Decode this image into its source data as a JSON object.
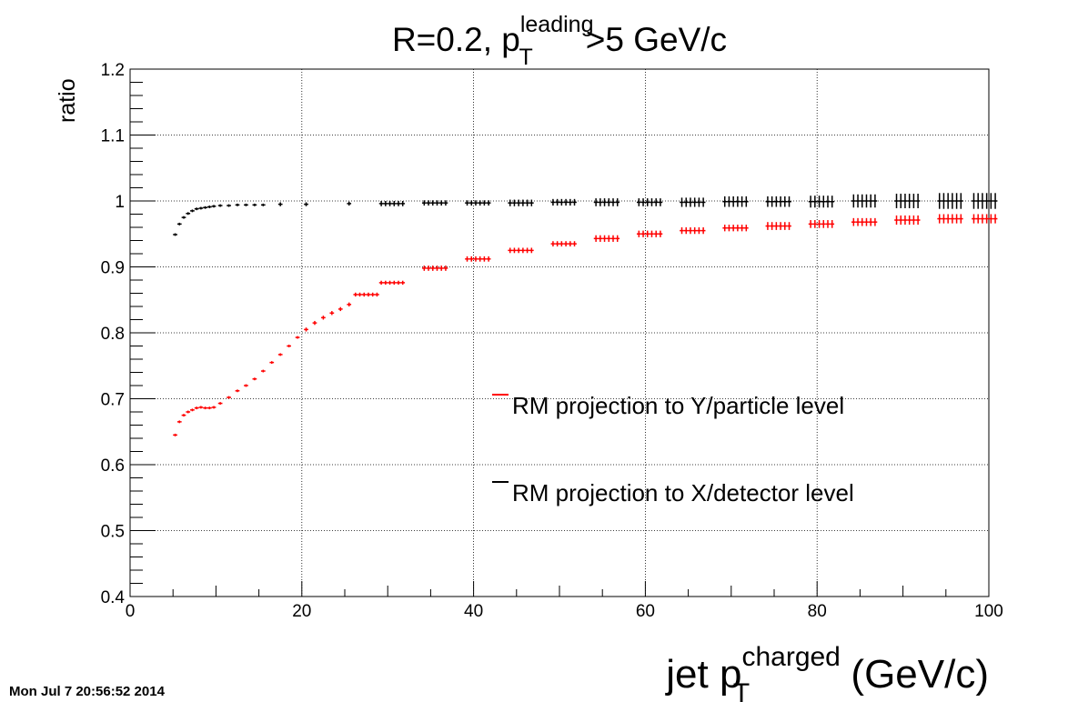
{
  "chart_data": {
    "type": "scatter",
    "title": {
      "main": "R=0.2, p",
      "sup": "leading",
      "sub": "T",
      "rest": ">5 GeV/c"
    },
    "xlabel": {
      "main": "jet p",
      "sup": "charged",
      "sub": "T",
      "rest": " (GeV/c)"
    },
    "ylabel": "ratio",
    "xlim": [
      0,
      100
    ],
    "ylim": [
      0.4,
      1.2
    ],
    "x_ticks": [
      "0",
      "20",
      "40",
      "60",
      "80",
      "100"
    ],
    "y_ticks": [
      "0.4",
      "0.5",
      "0.6",
      "0.7",
      "0.8",
      "0.9",
      "1",
      "1.1",
      "1.2"
    ],
    "grid": true,
    "legend_position": "center-right",
    "series": [
      {
        "name": "RM projection to Y/particle level",
        "color": "#ff0000",
        "x": [
          5.25,
          5.75,
          6.25,
          6.75,
          7.25,
          7.75,
          8.25,
          8.75,
          9.25,
          9.75,
          10.5,
          11.5,
          12.5,
          13.5,
          14.5,
          15.5,
          16.5,
          17.5,
          18.5,
          19.5,
          20.5,
          21.5,
          22.5,
          23.5,
          24.5,
          25.5,
          27.5,
          30.5,
          35.5,
          40.5,
          45.5,
          50.5,
          55.5,
          60.5,
          65.5,
          70.5,
          75.5,
          80.5,
          85.5,
          90.5,
          95.5,
          99.5
        ],
        "y": [
          0.645,
          0.665,
          0.675,
          0.68,
          0.683,
          0.686,
          0.687,
          0.686,
          0.686,
          0.687,
          0.693,
          0.702,
          0.712,
          0.72,
          0.73,
          0.742,
          0.755,
          0.767,
          0.78,
          0.793,
          0.805,
          0.815,
          0.823,
          0.83,
          0.836,
          0.843,
          0.858,
          0.876,
          0.898,
          0.912,
          0.925,
          0.935,
          0.943,
          0.95,
          0.955,
          0.959,
          0.962,
          0.965,
          0.968,
          0.971,
          0.973,
          0.973
        ],
        "yerr": [
          0.002,
          0.002,
          0.002,
          0.002,
          0.002,
          0.002,
          0.002,
          0.002,
          0.002,
          0.002,
          0.002,
          0.002,
          0.002,
          0.002,
          0.002,
          0.002,
          0.002,
          0.002,
          0.002,
          0.002,
          0.003,
          0.003,
          0.003,
          0.003,
          0.003,
          0.003,
          0.003,
          0.003,
          0.004,
          0.004,
          0.004,
          0.004,
          0.005,
          0.005,
          0.005,
          0.005,
          0.006,
          0.006,
          0.006,
          0.007,
          0.007,
          0.007
        ]
      },
      {
        "name": "RM projection to X/detector level",
        "color": "#000000",
        "x": [
          5.25,
          5.75,
          6.25,
          6.75,
          7.25,
          7.75,
          8.25,
          8.75,
          9.25,
          9.75,
          10.5,
          11.5,
          12.5,
          13.5,
          14.5,
          15.5,
          17.5,
          20.5,
          25.5,
          30.5,
          35.5,
          40.5,
          45.5,
          50.5,
          55.5,
          60.5,
          65.5,
          70.5,
          75.5,
          80.5,
          85.5,
          90.5,
          95.5,
          99.5
        ],
        "y": [
          0.949,
          0.965,
          0.975,
          0.981,
          0.985,
          0.988,
          0.989,
          0.99,
          0.991,
          0.992,
          0.993,
          0.993,
          0.994,
          0.994,
          0.994,
          0.994,
          0.995,
          0.995,
          0.996,
          0.996,
          0.997,
          0.997,
          0.997,
          0.998,
          0.998,
          0.998,
          0.998,
          0.999,
          0.999,
          0.999,
          1.0,
          1.0,
          1.0,
          1.0
        ],
        "yerr": [
          0.002,
          0.002,
          0.002,
          0.002,
          0.002,
          0.002,
          0.002,
          0.002,
          0.002,
          0.002,
          0.002,
          0.002,
          0.002,
          0.002,
          0.002,
          0.002,
          0.003,
          0.003,
          0.003,
          0.004,
          0.004,
          0.004,
          0.005,
          0.005,
          0.006,
          0.006,
          0.007,
          0.008,
          0.008,
          0.009,
          0.01,
          0.011,
          0.012,
          0.012
        ]
      }
    ]
  },
  "timestamp": "Mon Jul  7 20:56:52 2014"
}
